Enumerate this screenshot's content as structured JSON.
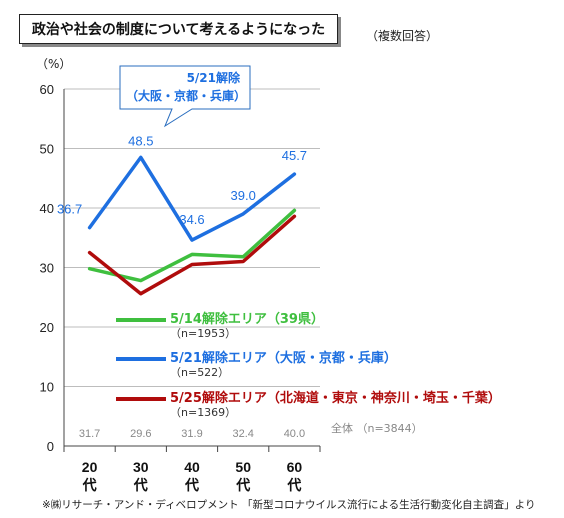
{
  "title": "政治や社会の制度について考えるようになった",
  "note": "（複数回答）",
  "source": "※㈱リサーチ・アンド・ディベロプメント 「新型コロナウイルス流行による生活行動変化自主調査」より",
  "total_label": "全体 （n=3844）",
  "callout": {
    "line1": "5/21解除",
    "line2": "（大阪・京都・兵庫）"
  },
  "chart_data": {
    "type": "line",
    "ylabel": "（%）",
    "ylim": [
      0,
      60
    ],
    "yticks": [
      0,
      10,
      20,
      30,
      40,
      50,
      60
    ],
    "categories": [
      "20代",
      "30代",
      "40代",
      "50代",
      "60代"
    ],
    "category_labels": [
      [
        "20",
        "代"
      ],
      [
        "30",
        "代"
      ],
      [
        "40",
        "代"
      ],
      [
        "50",
        "代"
      ],
      [
        "60",
        "代"
      ]
    ],
    "totals": [
      "31.7",
      "29.6",
      "31.9",
      "32.4",
      "40.0"
    ],
    "series": [
      {
        "name": "5/14解除エリア（39県）",
        "n": "（n=1953）",
        "color": "#3fbf3f",
        "values": [
          29.8,
          27.8,
          32.2,
          31.8,
          39.6
        ],
        "show_labels": false
      },
      {
        "name": "5/21解除エリア（大阪・京都・兵庫）",
        "n": "（n=522）",
        "color": "#1e6fe0",
        "values": [
          36.7,
          48.5,
          34.6,
          39.0,
          45.7
        ],
        "show_labels": true,
        "labels": [
          "36.7",
          "48.5",
          "34.6",
          "39.0",
          "45.7"
        ]
      },
      {
        "name": "5/25解除エリア（北海道・東京・神奈川・埼玉・千葉）",
        "n": "（n=1369）",
        "color": "#b00c0c",
        "values": [
          32.5,
          25.6,
          30.5,
          31.0,
          38.6
        ],
        "show_labels": false
      }
    ]
  }
}
